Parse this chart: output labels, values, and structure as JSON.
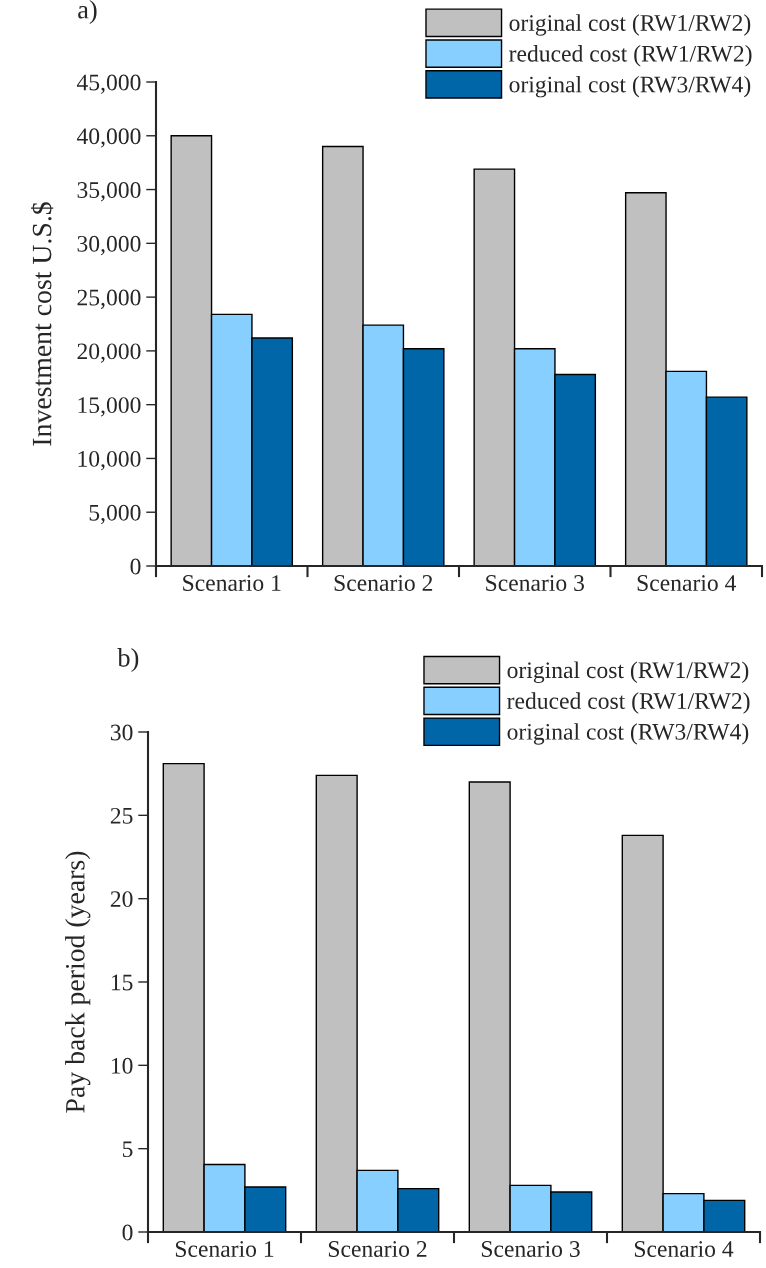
{
  "chart_data": [
    {
      "type": "bar",
      "title": "a)",
      "ylabel": "Investment cost U.S.$",
      "categories": [
        "Scenario 1",
        "Scenario 2",
        "Scenario 3",
        "Scenario 4"
      ],
      "series": [
        {
          "name": "original cost (RW1/RW2)",
          "color": "#c0c0c0",
          "values": [
            40000,
            39000,
            36900,
            34700
          ]
        },
        {
          "name": "reduced cost (RW1/RW2)",
          "color": "#87cfff",
          "values": [
            23400,
            22400,
            20200,
            18100
          ]
        },
        {
          "name": "original cost (RW3/RW4)",
          "color": "#0066a8",
          "values": [
            21200,
            20200,
            17800,
            15700
          ]
        }
      ],
      "ylim": [
        0,
        45000
      ],
      "yticks": [
        {
          "value": 0,
          "label": "0"
        },
        {
          "value": 5000,
          "label": "5,000"
        },
        {
          "value": 10000,
          "label": "10,000"
        },
        {
          "value": 15000,
          "label": "15,000"
        },
        {
          "value": 20000,
          "label": "20,000"
        },
        {
          "value": 25000,
          "label": "25,000"
        },
        {
          "value": 30000,
          "label": "30,000"
        },
        {
          "value": 35000,
          "label": "35,000"
        },
        {
          "value": 40000,
          "label": "40,000"
        },
        {
          "value": 45000,
          "label": "45,000"
        }
      ],
      "legend": "top right",
      "grid": false
    },
    {
      "type": "bar",
      "title": "b)",
      "ylabel": "Pay back period (years)",
      "categories": [
        "Scenario 1",
        "Scenario 2",
        "Scenario 3",
        "Scenario 4"
      ],
      "series": [
        {
          "name": "original cost (RW1/RW2)",
          "color": "#c0c0c0",
          "values": [
            28.1,
            27.4,
            27.0,
            23.8
          ]
        },
        {
          "name": "reduced cost (RW1/RW2)",
          "color": "#87cfff",
          "values": [
            4.05,
            3.7,
            2.8,
            2.3
          ]
        },
        {
          "name": "original cost (RW3/RW4)",
          "color": "#0066a8",
          "values": [
            2.7,
            2.6,
            2.4,
            1.9
          ]
        }
      ],
      "ylim": [
        0,
        30
      ],
      "yticks": [
        0,
        5,
        10,
        15,
        20,
        25,
        30
      ],
      "legend": "top right",
      "grid": false
    }
  ]
}
